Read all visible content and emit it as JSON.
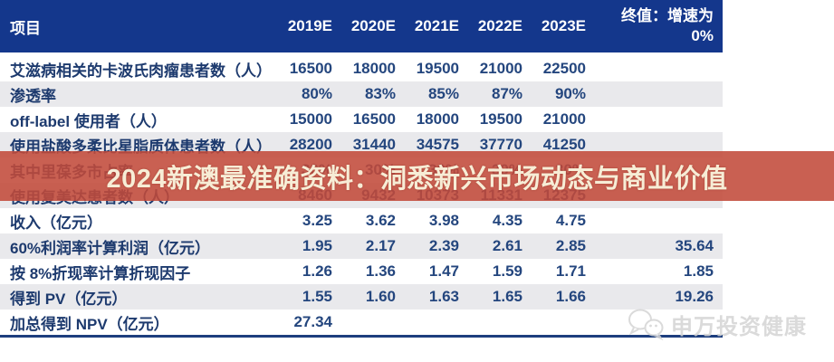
{
  "banner": {
    "text": "2024新澳最准确资料：洞悉新兴市场动态与商业价值",
    "band_color": "#c14a3a",
    "text_color": "#f7edd6"
  },
  "watermark": {
    "text": "申万投资健康",
    "icon": "wechat-chat-bubbles-icon",
    "color": "#d4d4d4"
  },
  "colors": {
    "header_bg": "#14378c",
    "header_text": "#ffffff",
    "row_stripe": "#e9e9ec",
    "label_text": "#1d3a6e",
    "number_text": "#24467e",
    "bottom_border": "#1d3e7e"
  },
  "table": {
    "header": {
      "label": "项目",
      "years": [
        "2019E",
        "2020E",
        "2021E",
        "2022E",
        "2023E"
      ],
      "terminal_line1": "终值：增速为",
      "terminal_line2": "0%"
    },
    "rows": [
      {
        "label": "艾滋病相关的卡波氏肉瘤患者数（人）",
        "values": [
          "16500",
          "18000",
          "19500",
          "21000",
          "22500"
        ],
        "terminal": ""
      },
      {
        "label": "渗透率",
        "values": [
          "80%",
          "83%",
          "85%",
          "87%",
          "90%"
        ],
        "terminal": ""
      },
      {
        "label": "off-label 使用者（人）",
        "values": [
          "15000",
          "16500",
          "18000",
          "19500",
          "21000"
        ],
        "terminal": ""
      },
      {
        "label": "使用盐酸多柔比星脂质体患者数（人）",
        "values": [
          "28200",
          "31440",
          "34575",
          "37770",
          "41250"
        ],
        "terminal": ""
      },
      {
        "label": "其中里葆多市占率",
        "values": [
          "30%",
          "30%",
          "30%",
          "30%",
          "30%"
        ],
        "terminal": ""
      },
      {
        "label": "使用复美达患者数（人）",
        "values": [
          "8460",
          "9432",
          "10373",
          "11331",
          "12375"
        ],
        "terminal": ""
      },
      {
        "label": "收入（亿元）",
        "values": [
          "3.25",
          "3.62",
          "3.98",
          "4.35",
          "4.75"
        ],
        "terminal": ""
      },
      {
        "label": "60%利润率计算利润（亿元）",
        "values": [
          "1.95",
          "2.17",
          "2.39",
          "2.61",
          "2.85"
        ],
        "terminal": "35.64"
      },
      {
        "label": "按 8%折现率计算折现因子",
        "values": [
          "1.26",
          "1.36",
          "1.47",
          "1.59",
          "1.71"
        ],
        "terminal": "1.85"
      },
      {
        "label": "得到 PV（亿元）",
        "values": [
          "1.55",
          "1.60",
          "1.63",
          "1.65",
          "1.66"
        ],
        "terminal": "19.26"
      },
      {
        "label": "加总得到 NPV（亿元）",
        "values": [
          "27.34",
          "",
          "",
          "",
          ""
        ],
        "terminal": ""
      }
    ]
  }
}
